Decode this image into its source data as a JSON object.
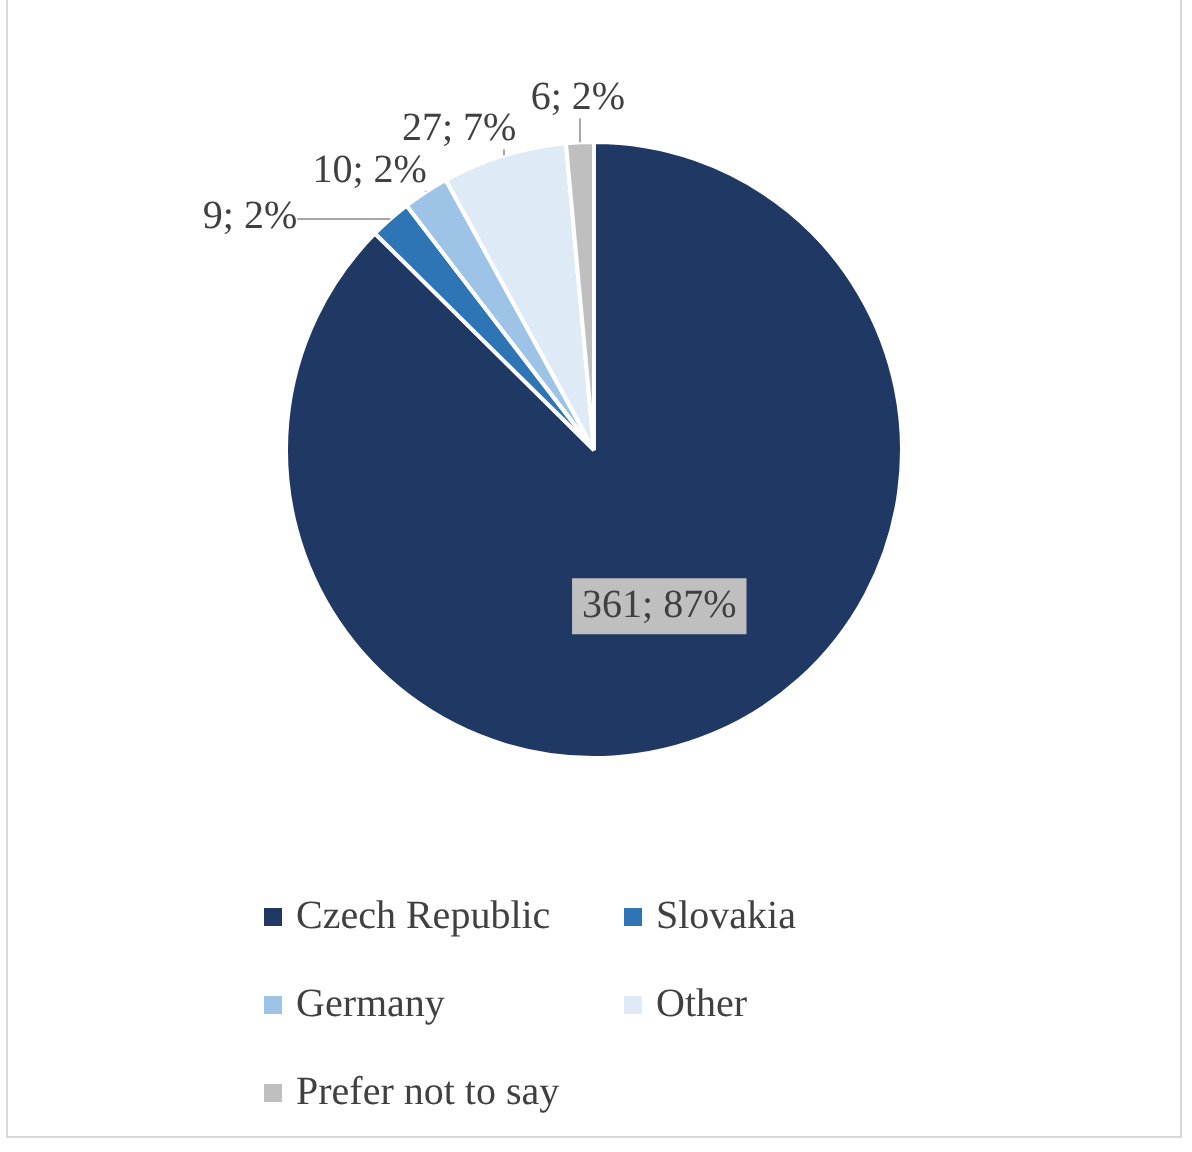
{
  "chart_data": {
    "type": "pie",
    "categories": [
      "Czech Republic",
      "Slovakia",
      "Germany",
      "Other",
      "Prefer not to say"
    ],
    "values": [
      361,
      9,
      10,
      27,
      6
    ],
    "colors": [
      "#1f3864",
      "#2e75b6",
      "#9dc3e6",
      "#deebf7",
      "#bfbfbf"
    ],
    "value_labels": [
      "361; 87%",
      "9; 2%",
      "10; 2%",
      "27; 7%",
      "6; 2%"
    ],
    "legend": "bottom"
  }
}
